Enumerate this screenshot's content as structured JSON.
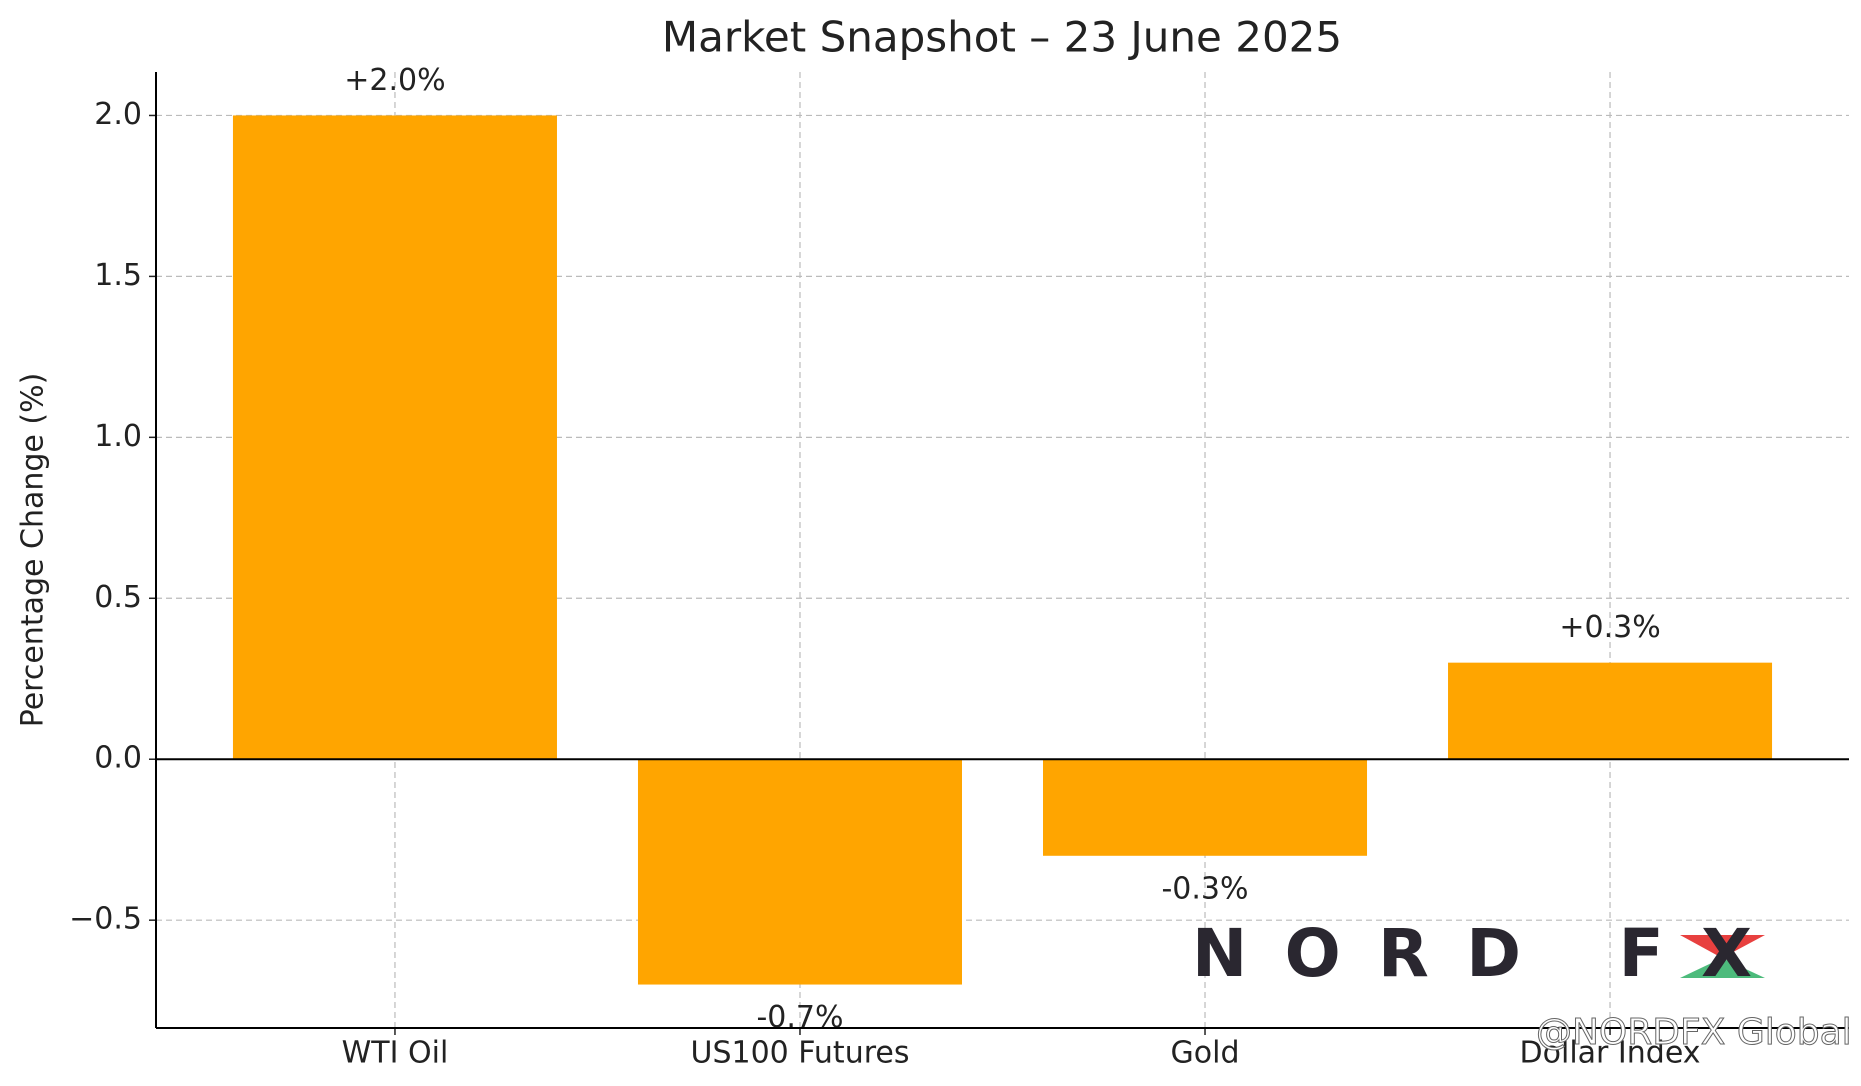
{
  "chart_data": {
    "type": "bar",
    "title": "Market Snapshot – 23 June 2025",
    "y_label": "Percentage Change (%)",
    "categories": [
      "WTI Oil",
      "US100 Futures",
      "Gold",
      "Dollar Index"
    ],
    "values": [
      2.0,
      -0.7,
      -0.3,
      0.3
    ],
    "value_labels": [
      "+2.0%",
      "-0.7%",
      "-0.3%",
      "+0.3%"
    ],
    "color": "#ffa500",
    "ylim": [
      -0.835,
      2.135
    ],
    "yticks": [
      {
        "value": -0.5,
        "label": "−0.5"
      },
      {
        "value": 0,
        "label": "0.0"
      },
      0.5,
      {
        "value": 1,
        "label": "1.0"
      },
      1.5,
      {
        "value": 2,
        "label": "2.0"
      }
    ],
    "grid": true,
    "watermark": {
      "logo": "NORD FX",
      "handle": "@NORDFX Global"
    }
  }
}
